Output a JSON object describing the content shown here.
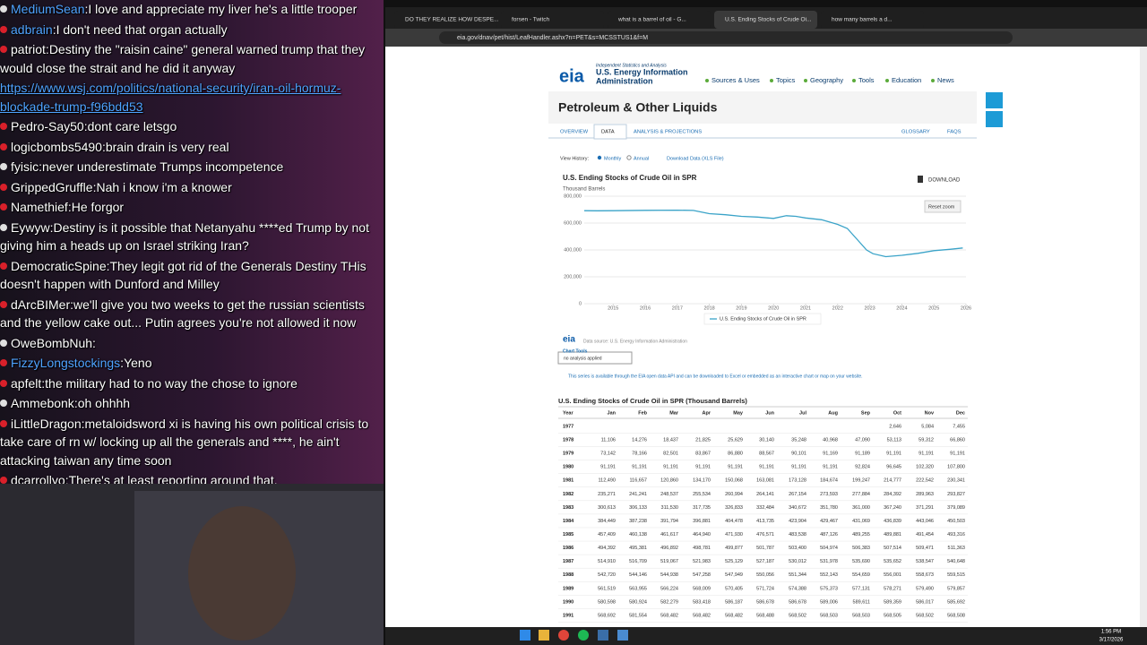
{
  "chat": {
    "separator": ":",
    "messages": [
      {
        "user": "MediumSean",
        "color": "#4fa3ff",
        "text": "I love and appreciate my liver he's a little trooper"
      },
      {
        "user": "adbrain",
        "color": "#4fa3ff",
        "text": "I don't need that organ actually"
      },
      {
        "user": "patriot",
        "color": "#ffffff",
        "text": "Destiny the \"raisin caine\" general warned trump that they would close the strait and he did it anyway"
      },
      {
        "link": "https://www.wsj.com/politics/national-security/iran-oil-hormuz-blockade-trump-f96bdd53",
        "color": "#4fa3ff"
      },
      {
        "user": "Pedro-Say50",
        "color": "#ffffff",
        "text": "dont care letsgo"
      },
      {
        "user": "logicbombs5490",
        "color": "#ffffff",
        "text": "brain drain is very real"
      },
      {
        "user": "fyisic",
        "color": "#ffffff",
        "text": "never underestimate Trumps incompetence"
      },
      {
        "user": "GrippedGruffle",
        "color": "#ffffff",
        "text": "Nah i know i'm a knower"
      },
      {
        "user": "Namethief",
        "color": "#ffffff",
        "text": "He forgor"
      },
      {
        "user": "Eywyw",
        "color": "#ffffff",
        "text": "Destiny is it possible that Netanyahu ****ed Trump by not giving him a heads up on Israel striking Iran?"
      },
      {
        "user": "DemocraticSpine",
        "color": "#ffffff",
        "text": "They legit got rid of the Generals Destiny THis doesn't happen with Dunford and Milley"
      },
      {
        "user": "dArcBIMer",
        "color": "#ffffff",
        "text": "we'll give you two weeks to get the russian scientists and the yellow cake out... Putin agrees you're not allowed it now"
      },
      {
        "user": "OweBombNuh",
        "color": "#ffffff"
      },
      {
        "user": "FizzyLongstockings",
        "color": "#4fa3ff",
        "text": "Yeno"
      },
      {
        "user": "apfelt",
        "color": "#ffffff",
        "text": "the military had to no way the chose to ignore"
      },
      {
        "user": "Ammebonk",
        "color": "#ffffff",
        "text": "oh ohhhh"
      },
      {
        "user": "iLittleDragon",
        "color": "#ffffff",
        "text": "metaloidsword xi is having his own political crisis to take care of rn w/ locking up all the generals and ****, he ain't attacking taiwan any time soon"
      },
      {
        "user": "dcarrollyo",
        "color": "#ffffff",
        "text": "There's at least reporting around that."
      }
    ]
  },
  "browser": {
    "tabs": [
      "DO THEY REALIZE HOW DESPE...",
      "forsen - Twitch",
      "what is a barrel of oil - G...",
      "U.S. Ending Stocks of Crude Oi...",
      "how many barrels a d..."
    ],
    "url": "eia.gov/dnav/pet/hist/LeafHandler.ashx?n=PET&s=MCSSTUS1&f=M",
    "header": {
      "logo": "eia",
      "tagline": "Independent Statistics and Analysis",
      "name_line1": "U.S. Energy Information",
      "name_line2": "Administration",
      "nav": [
        "Sources & Uses",
        "Topics",
        "Geography",
        "Tools",
        "Education",
        "News"
      ]
    },
    "page_title": "Petroleum & Other Liquids",
    "page_tabs": [
      "OVERVIEW",
      "DATA",
      "ANALYSIS & PROJECTIONS",
      "GLOSSARY",
      "FAQS"
    ],
    "view_history": {
      "label": "View History:",
      "options": [
        "Monthly",
        "Annual"
      ],
      "download": "Download Data (XLS File)"
    },
    "chart": {
      "type": "line",
      "title": "U.S. Ending Stocks of Crude Oil in SPR",
      "y_label": "Thousand Barrels",
      "download": "DOWNLOAD",
      "reset_zoom": "Reset zoom",
      "x": [
        2014.1,
        2014.5,
        2015,
        2016,
        2017,
        2017.5,
        2018,
        2018.5,
        2019,
        2019.5,
        2020,
        2020.4,
        2020.7,
        2021,
        2021.5,
        2022,
        2022.3,
        2022.6,
        2022.9,
        2023.1,
        2023.5,
        2024,
        2024.5,
        2025,
        2025.5,
        2025.9
      ],
      "series": [
        {
          "name": "U.S. Ending Stocks of Crude Oil in SPR",
          "color": "#3aa3c8",
          "values": [
            692000,
            691000,
            692000,
            695000,
            696000,
            694000,
            670000,
            662000,
            650000,
            645000,
            635000,
            655000,
            650000,
            638000,
            625000,
            590000,
            560000,
            480000,
            400000,
            372000,
            350000,
            360000,
            375000,
            395000,
            405000,
            415000
          ]
        }
      ],
      "xlim": [
        2014.1,
        2026
      ],
      "xticks": [
        2015,
        2016,
        2017,
        2018,
        2019,
        2020,
        2021,
        2022,
        2023,
        2024,
        2025,
        2026
      ],
      "ylim": [
        0,
        800000
      ],
      "yticks": [
        0,
        {
          "value": 200000,
          "label": "200,000"
        },
        {
          "value": 400000,
          "label": "400,000"
        },
        {
          "value": 600000,
          "label": "600,000"
        },
        {
          "value": 800000,
          "label": "800,000"
        }
      ],
      "grid": true,
      "source": "Data source: U.S. Energy Information Administration",
      "tools_label": "Chart Tools",
      "tools_select": "no analysis applied",
      "note": "This series is available through the EIA open data API and can be downloaded to Excel or embedded as an interactive chart or map on your website."
    },
    "table": {
      "title": "U.S. Ending Stocks of Crude Oil in SPR (Thousand Barrels)",
      "columns": [
        "Year",
        "Jan",
        "Feb",
        "Mar",
        "Apr",
        "May",
        "Jun",
        "Jul",
        "Aug",
        "Sep",
        "Oct",
        "Nov",
        "Dec"
      ],
      "rows": [
        [
          "1977",
          null,
          null,
          null,
          null,
          null,
          null,
          null,
          null,
          null,
          "2,646",
          "5,084",
          "7,455"
        ],
        [
          "1978",
          "11,106",
          "14,276",
          "18,437",
          "21,825",
          "25,629",
          "30,140",
          "35,248",
          "40,968",
          "47,090",
          "53,113",
          "59,312",
          "66,860"
        ],
        [
          "1979",
          "73,142",
          "78,166",
          "82,501",
          "83,867",
          "86,880",
          "88,567",
          "90,101",
          "91,169",
          "91,189",
          "91,191",
          "91,191",
          "91,191"
        ],
        [
          "1980",
          "91,191",
          "91,191",
          "91,191",
          "91,191",
          "91,191",
          "91,191",
          "91,191",
          "91,191",
          "92,824",
          "96,645",
          "102,320",
          "107,800"
        ],
        [
          "1981",
          "112,490",
          "116,657",
          "120,860",
          "134,170",
          "150,068",
          "163,081",
          "173,128",
          "184,674",
          "199,247",
          "214,777",
          "222,542",
          "230,341"
        ],
        [
          "1982",
          "235,271",
          "241,241",
          "248,537",
          "255,534",
          "260,994",
          "264,141",
          "267,154",
          "273,593",
          "277,884",
          "284,392",
          "289,963",
          "293,827"
        ],
        [
          "1983",
          "300,613",
          "306,133",
          "311,530",
          "317,735",
          "326,833",
          "332,484",
          "340,672",
          "351,780",
          "361,000",
          "367,240",
          "371,291",
          "379,089"
        ],
        [
          "1984",
          "384,449",
          "387,238",
          "391,794",
          "396,881",
          "404,478",
          "413,735",
          "423,904",
          "429,467",
          "431,069",
          "436,839",
          "443,046",
          "450,503"
        ],
        [
          "1985",
          "457,409",
          "460,138",
          "461,617",
          "464,940",
          "471,930",
          "476,571",
          "483,538",
          "487,126",
          "489,255",
          "489,881",
          "491,454",
          "493,316"
        ],
        [
          "1986",
          "494,392",
          "495,381",
          "496,892",
          "498,781",
          "499,877",
          "501,787",
          "503,400",
          "504,974",
          "506,383",
          "507,514",
          "509,471",
          "511,363"
        ],
        [
          "1987",
          "514,910",
          "516,709",
          "519,067",
          "521,983",
          "525,129",
          "527,187",
          "530,012",
          "531,978",
          "535,690",
          "535,652",
          "538,547",
          "540,648"
        ],
        [
          "1988",
          "542,720",
          "544,146",
          "544,938",
          "547,258",
          "547,949",
          "550,056",
          "551,344",
          "552,143",
          "554,659",
          "556,001",
          "558,673",
          "559,515"
        ],
        [
          "1989",
          "561,519",
          "563,955",
          "566,224",
          "568,009",
          "570,405",
          "571,724",
          "574,388",
          "575,373",
          "577,131",
          "578,271",
          "579,490",
          "579,857"
        ],
        [
          "1990",
          "580,598",
          "580,924",
          "582,279",
          "583,418",
          "586,187",
          "586,678",
          "586,678",
          "589,006",
          "589,611",
          "589,359",
          "586,017",
          "585,692"
        ],
        [
          "1991",
          "568,692",
          "581,554",
          "568,482",
          "568,482",
          "568,482",
          "568,488",
          "568,502",
          "568,503",
          "568,503",
          "568,505",
          "568,502",
          "568,508"
        ]
      ]
    }
  },
  "taskbar": {
    "time": "1:56 PM",
    "date": "3/17/2026"
  }
}
